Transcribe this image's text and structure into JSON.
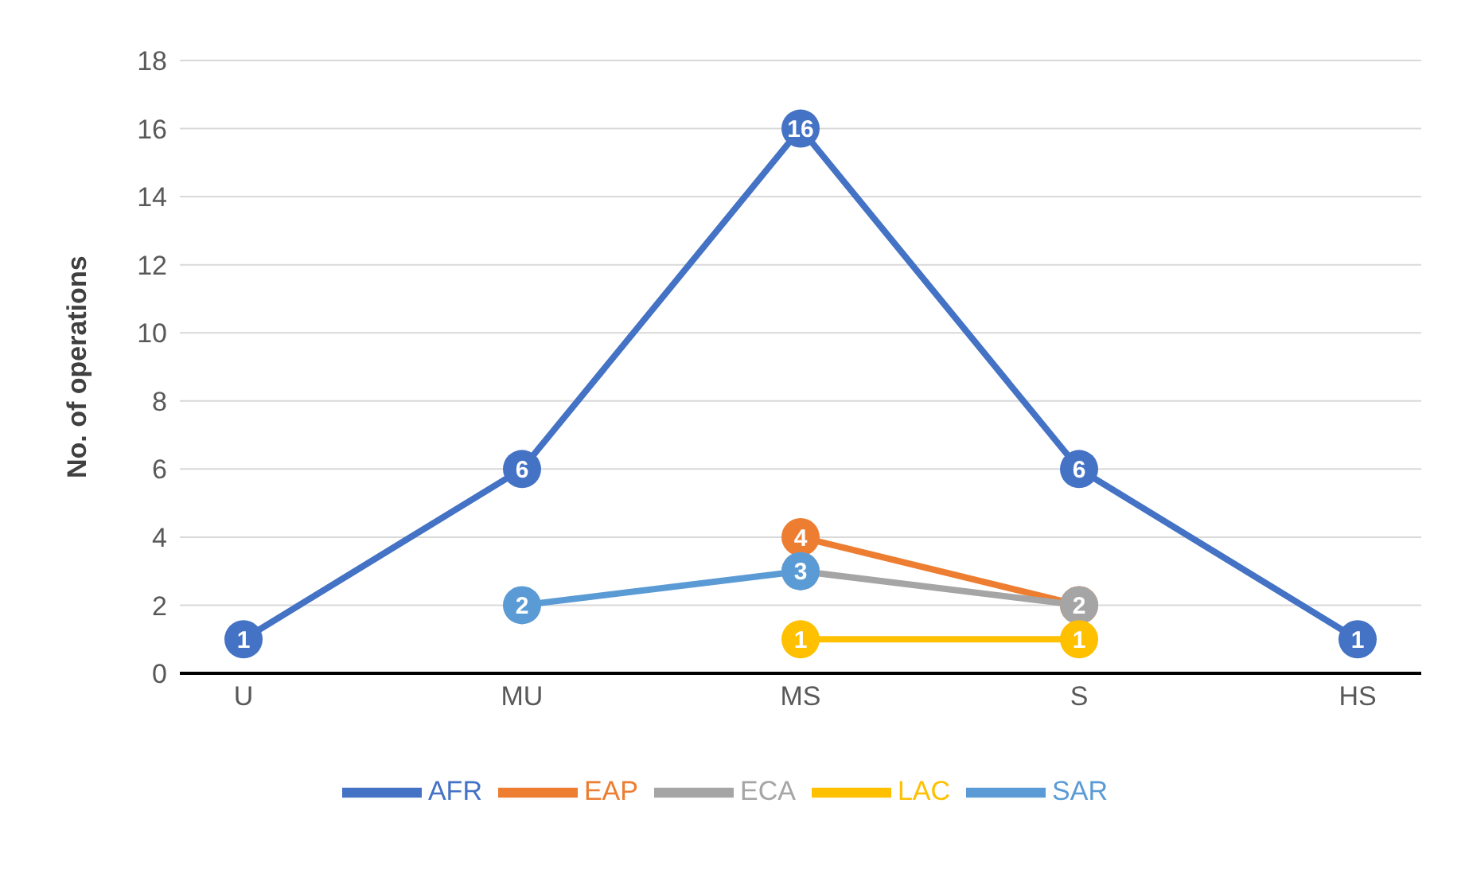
{
  "chart_data": {
    "type": "line",
    "ylabel": "No. of operations",
    "categories": [
      "U",
      "MU",
      "MS",
      "S",
      "HS"
    ],
    "series": [
      {
        "name": "AFR",
        "color": "#4472c4",
        "values": [
          1,
          6,
          16,
          6,
          1
        ],
        "value_labels": [
          "1",
          "6",
          "16",
          "6",
          "1"
        ]
      },
      {
        "name": "EAP",
        "color": "#ed7d31",
        "values": [
          null,
          null,
          4,
          2,
          null
        ],
        "value_labels": [
          null,
          null,
          "4",
          null,
          null
        ]
      },
      {
        "name": "ECA",
        "color": "#a5a5a5",
        "values": [
          null,
          null,
          3,
          2,
          null
        ],
        "value_labels": [
          null,
          null,
          null,
          "2",
          null
        ]
      },
      {
        "name": "LAC",
        "color": "#ffc000",
        "values": [
          null,
          null,
          1,
          1,
          null
        ],
        "value_labels": [
          null,
          null,
          "1",
          "1",
          null
        ]
      },
      {
        "name": "SAR",
        "color": "#5b9bd5",
        "values": [
          null,
          2,
          3,
          null,
          null
        ],
        "value_labels": [
          null,
          "2",
          "3",
          null,
          null
        ]
      }
    ],
    "ylim": [
      0,
      18
    ],
    "yticks": [
      0,
      2,
      4,
      6,
      8,
      10,
      12,
      14,
      16,
      18
    ],
    "grid": "y",
    "legend": "bottom",
    "marker": "circle",
    "line_style": "solid"
  }
}
